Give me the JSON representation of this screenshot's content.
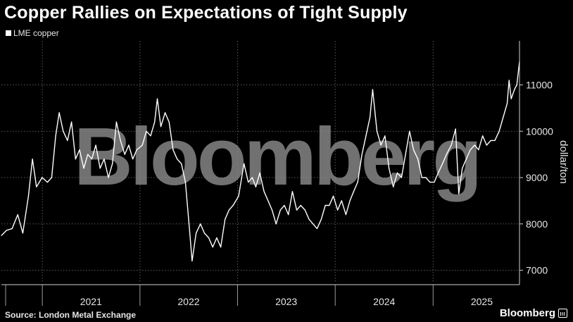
{
  "page": {
    "title": "Copper Rallies on Expectations of Tight Supply",
    "source": "Source: London Metal Exchange",
    "brand": "Bloomberg",
    "watermark": "Bloomberg"
  },
  "colors": {
    "background": "#000000",
    "line": "#ffffff",
    "gridline": "#5a5a5a",
    "watermark": "#8a8a8a",
    "text": "#e6e6e6"
  },
  "chart_data": {
    "type": "line",
    "title": "Copper Rallies on Expectations of Tight Supply",
    "xlabel": "",
    "ylabel": "dollar/ton",
    "x_axis": {
      "type": "date",
      "range": [
        "2020-08-01",
        "2025-11-20"
      ],
      "year_labels": [
        {
          "label": "2021",
          "date": "2021-07-02"
        },
        {
          "label": "2022",
          "date": "2022-07-02"
        },
        {
          "label": "2023",
          "date": "2023-07-02"
        },
        {
          "label": "2024",
          "date": "2024-07-02"
        },
        {
          "label": "2025",
          "date": "2025-07-02"
        }
      ],
      "year_boundaries": [
        "2021-01-01",
        "2022-01-01",
        "2023-01-01",
        "2024-01-01",
        "2025-01-01"
      ]
    },
    "y_axis": {
      "range": [
        6750,
        11950
      ],
      "ticks": [
        7000,
        8000,
        9000,
        10000,
        11000
      ],
      "tick_labels": [
        "7000",
        "8000",
        "9000",
        "10000",
        "11000"
      ],
      "position": "right"
    },
    "grid": true,
    "legend": {
      "position": "top-left",
      "entries": [
        "LME copper"
      ]
    },
    "series": [
      {
        "name": "LME copper",
        "points": [
          [
            "2020-08-01",
            7750
          ],
          [
            "2020-08-20",
            7860
          ],
          [
            "2020-09-10",
            7900
          ],
          [
            "2020-10-01",
            8200
          ],
          [
            "2020-10-20",
            7800
          ],
          [
            "2020-11-10",
            8600
          ],
          [
            "2020-11-25",
            9400
          ],
          [
            "2020-12-10",
            8800
          ],
          [
            "2020-12-31",
            9000
          ],
          [
            "2021-01-20",
            8900
          ],
          [
            "2021-02-05",
            9000
          ],
          [
            "2021-02-20",
            9900
          ],
          [
            "2021-03-05",
            10400
          ],
          [
            "2021-03-20",
            10000
          ],
          [
            "2021-04-05",
            9800
          ],
          [
            "2021-04-20",
            10200
          ],
          [
            "2021-05-05",
            9400
          ],
          [
            "2021-05-20",
            9600
          ],
          [
            "2021-06-05",
            9200
          ],
          [
            "2021-06-20",
            9500
          ],
          [
            "2021-07-05",
            9400
          ],
          [
            "2021-07-20",
            9700
          ],
          [
            "2021-08-05",
            9200
          ],
          [
            "2021-08-20",
            9400
          ],
          [
            "2021-09-05",
            9000
          ],
          [
            "2021-09-20",
            9300
          ],
          [
            "2021-10-05",
            10200
          ],
          [
            "2021-10-20",
            9800
          ],
          [
            "2021-11-05",
            9500
          ],
          [
            "2021-11-20",
            9700
          ],
          [
            "2021-12-05",
            9400
          ],
          [
            "2021-12-20",
            9600
          ],
          [
            "2022-01-10",
            9700
          ],
          [
            "2022-01-25",
            10000
          ],
          [
            "2022-02-10",
            9900
          ],
          [
            "2022-02-25",
            10200
          ],
          [
            "2022-03-07",
            10700
          ],
          [
            "2022-03-20",
            10100
          ],
          [
            "2022-04-05",
            10400
          ],
          [
            "2022-04-20",
            10200
          ],
          [
            "2022-05-05",
            9600
          ],
          [
            "2022-05-20",
            9400
          ],
          [
            "2022-06-05",
            9300
          ],
          [
            "2022-06-20",
            8900
          ],
          [
            "2022-07-05",
            7900
          ],
          [
            "2022-07-15",
            7200
          ],
          [
            "2022-07-30",
            7800
          ],
          [
            "2022-08-15",
            8000
          ],
          [
            "2022-08-30",
            7800
          ],
          [
            "2022-09-15",
            7700
          ],
          [
            "2022-09-30",
            7500
          ],
          [
            "2022-10-15",
            7700
          ],
          [
            "2022-10-30",
            7500
          ],
          [
            "2022-11-15",
            8100
          ],
          [
            "2022-11-30",
            8300
          ],
          [
            "2022-12-15",
            8400
          ],
          [
            "2023-01-05",
            8600
          ],
          [
            "2023-01-25",
            9300
          ],
          [
            "2023-02-10",
            8900
          ],
          [
            "2023-02-25",
            9000
          ],
          [
            "2023-03-10",
            8800
          ],
          [
            "2023-03-25",
            9100
          ],
          [
            "2023-04-10",
            8700
          ],
          [
            "2023-04-25",
            8500
          ],
          [
            "2023-05-10",
            8300
          ],
          [
            "2023-05-25",
            8000
          ],
          [
            "2023-06-10",
            8300
          ],
          [
            "2023-06-25",
            8400
          ],
          [
            "2023-07-10",
            8200
          ],
          [
            "2023-07-25",
            8700
          ],
          [
            "2023-08-10",
            8300
          ],
          [
            "2023-08-25",
            8400
          ],
          [
            "2023-09-10",
            8300
          ],
          [
            "2023-09-25",
            8100
          ],
          [
            "2023-10-10",
            8000
          ],
          [
            "2023-10-25",
            7900
          ],
          [
            "2023-11-10",
            8100
          ],
          [
            "2023-11-25",
            8400
          ],
          [
            "2023-12-10",
            8400
          ],
          [
            "2023-12-25",
            8600
          ],
          [
            "2024-01-10",
            8300
          ],
          [
            "2024-01-25",
            8500
          ],
          [
            "2024-02-10",
            8200
          ],
          [
            "2024-02-25",
            8500
          ],
          [
            "2024-03-10",
            8700
          ],
          [
            "2024-03-25",
            8900
          ],
          [
            "2024-04-10",
            9500
          ],
          [
            "2024-04-25",
            9900
          ],
          [
            "2024-05-10",
            10300
          ],
          [
            "2024-05-20",
            10900
          ],
          [
            "2024-06-05",
            10000
          ],
          [
            "2024-06-20",
            9700
          ],
          [
            "2024-07-05",
            9900
          ],
          [
            "2024-07-20",
            9200
          ],
          [
            "2024-08-05",
            8800
          ],
          [
            "2024-08-20",
            9100
          ],
          [
            "2024-09-05",
            9000
          ],
          [
            "2024-09-20",
            9500
          ],
          [
            "2024-10-05",
            10000
          ],
          [
            "2024-10-20",
            9600
          ],
          [
            "2024-11-05",
            9400
          ],
          [
            "2024-11-20",
            9000
          ],
          [
            "2024-12-05",
            9000
          ],
          [
            "2024-12-20",
            8900
          ],
          [
            "2025-01-05",
            8900
          ],
          [
            "2025-01-20",
            9100
          ],
          [
            "2025-02-05",
            9300
          ],
          [
            "2025-02-20",
            9500
          ],
          [
            "2025-03-10",
            9700
          ],
          [
            "2025-03-26",
            10050
          ],
          [
            "2025-04-07",
            8650
          ],
          [
            "2025-04-20",
            9200
          ],
          [
            "2025-05-05",
            9400
          ],
          [
            "2025-05-20",
            9600
          ],
          [
            "2025-06-05",
            9700
          ],
          [
            "2025-06-20",
            9600
          ],
          [
            "2025-07-05",
            9900
          ],
          [
            "2025-07-20",
            9700
          ],
          [
            "2025-08-05",
            9800
          ],
          [
            "2025-08-20",
            9800
          ],
          [
            "2025-09-05",
            10000
          ],
          [
            "2025-09-20",
            10300
          ],
          [
            "2025-10-05",
            10600
          ],
          [
            "2025-10-12",
            11100
          ],
          [
            "2025-10-20",
            10700
          ],
          [
            "2025-11-01",
            10900
          ],
          [
            "2025-11-10",
            11000
          ],
          [
            "2025-11-20",
            11500
          ]
        ]
      }
    ]
  }
}
